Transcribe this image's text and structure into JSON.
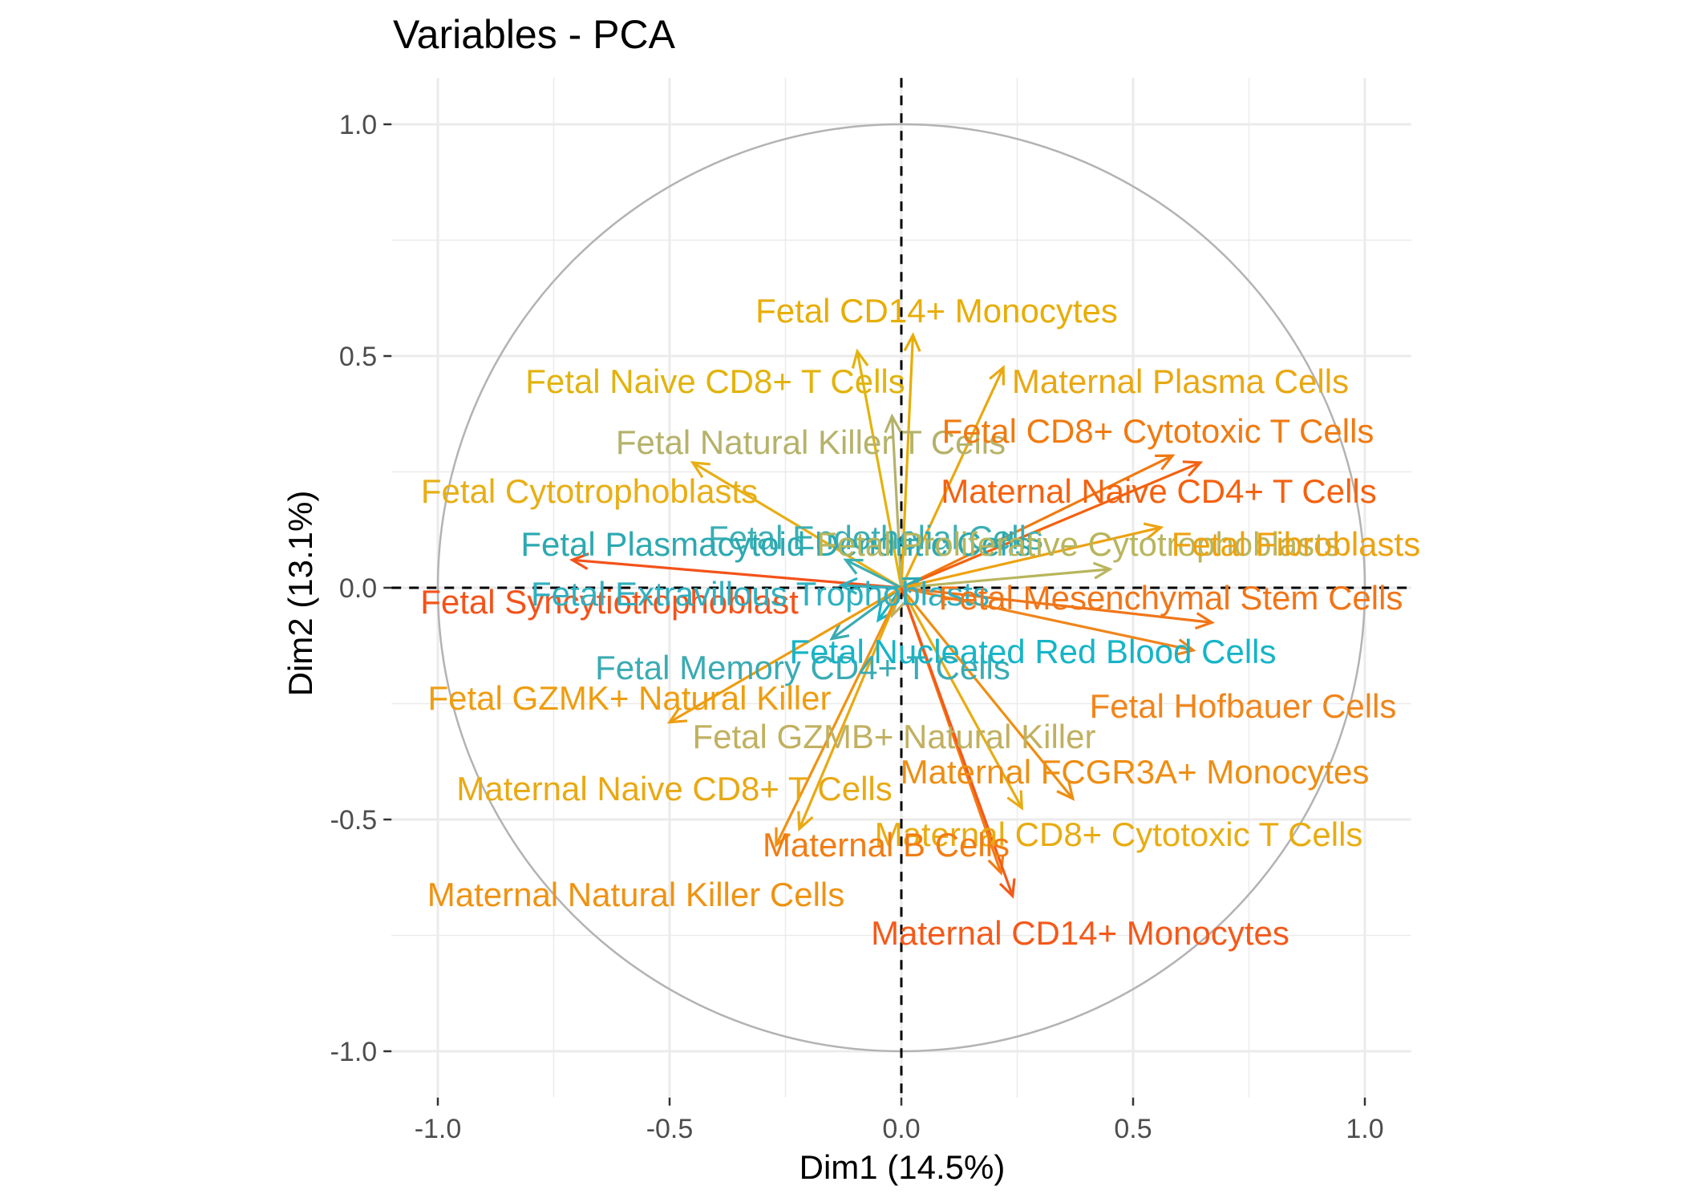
{
  "chart_data": {
    "type": "scatter",
    "subtype": "pca-variable-correlation-circle",
    "title": "Variables - PCA",
    "xlabel": "Dim1 (14.5%)",
    "ylabel": "Dim2 (13.1%)",
    "xlim": [
      -1.1,
      1.1
    ],
    "ylim": [
      -1.1,
      1.1
    ],
    "x_ticks": [
      -1.0,
      -0.5,
      0.0,
      0.5,
      1.0
    ],
    "x_tick_labels": [
      "-1.0",
      "-0.5",
      "0.0",
      "0.5",
      "1.0"
    ],
    "y_ticks": [
      -1.0,
      -0.5,
      0.0,
      0.5,
      1.0
    ],
    "y_tick_labels": [
      "-1.0",
      "-0.5",
      "0.0",
      "0.5",
      "1.0"
    ],
    "grid": true,
    "unit_circle": true,
    "reference_lines": [
      "x=0 dashed",
      "y=0 dashed"
    ],
    "colors": {
      "circle": "#b3b3b3",
      "grid": "#ebebeb",
      "ref_line": "#000000"
    },
    "variables": [
      {
        "label": "Fetal CD14+ Monocytes",
        "x": 0.025,
        "y": 0.545,
        "color": "#E8AD05"
      },
      {
        "label": "Fetal Naive CD8+ T Cells",
        "x": -0.095,
        "y": 0.51,
        "color": "#E2B30C"
      },
      {
        "label": "Maternal Plasma Cells",
        "x": 0.22,
        "y": 0.475,
        "color": "#E9A812"
      },
      {
        "label": "Fetal Natural Killer T Cells",
        "x": -0.02,
        "y": 0.37,
        "color": "#B5B26A"
      },
      {
        "label": "Fetal CD8+ Cytotoxic T Cells",
        "x": 0.585,
        "y": 0.285,
        "color": "#F07A10"
      },
      {
        "label": "Maternal Naive CD4+ T Cells",
        "x": 0.645,
        "y": 0.27,
        "color": "#F4610F"
      },
      {
        "label": "Fetal Cytotrophoblasts",
        "x": -0.45,
        "y": 0.27,
        "color": "#E8AE15"
      },
      {
        "label": "Fetal Endothelial Cells",
        "x": -0.12,
        "y": 0.06,
        "color": "#3AAFB3"
      },
      {
        "label": "Fetal Plasmacytoid Dendritic Cells",
        "x": 0.04,
        "y": 0.02,
        "color": "#2CA9B1"
      },
      {
        "label": "Fetal Proliferative Cytotrophoblasts",
        "x": 0.45,
        "y": 0.04,
        "color": "#B8B55D"
      },
      {
        "label": "Fetal Fibroblasts",
        "x": 0.56,
        "y": 0.13,
        "color": "#EDA20F"
      },
      {
        "label": "Fetal Syncytiotrophoblast",
        "x": -0.71,
        "y": 0.06,
        "color": "#F4521A"
      },
      {
        "label": "Fetal Extravillous Trophoblasts",
        "x": -0.13,
        "y": 0.005,
        "color": "#2FB0C0"
      },
      {
        "label": "Fetal Mesenchymal Stem Cells",
        "x": 0.67,
        "y": -0.075,
        "color": "#F17517"
      },
      {
        "label": "Fetal Memory CD4+ T Cells",
        "x": -0.15,
        "y": -0.11,
        "color": "#3BABB3"
      },
      {
        "label": "Fetal Nucleated Red Blood Cells",
        "x": -0.05,
        "y": -0.07,
        "color": "#16B4C7"
      },
      {
        "label": "Fetal Hofbauer Cells",
        "x": 0.63,
        "y": -0.135,
        "color": "#F0851B"
      },
      {
        "label": "Fetal GZMK+ Natural Killer",
        "x": -0.5,
        "y": -0.29,
        "color": "#EE9D10"
      },
      {
        "label": "Fetal GZMB+ Natural Killer",
        "x": -0.02,
        "y": -0.06,
        "color": "#C1B060"
      },
      {
        "label": "Maternal FCGR3A+ Monocytes",
        "x": 0.37,
        "y": -0.455,
        "color": "#EE8E12"
      },
      {
        "label": "Maternal Naive CD8+ T Cells",
        "x": -0.22,
        "y": -0.52,
        "color": "#E8A913"
      },
      {
        "label": "Maternal CD8+ Cytotoxic T Cells",
        "x": 0.26,
        "y": -0.475,
        "color": "#E8AC12"
      },
      {
        "label": "Maternal B Cells",
        "x": 0.215,
        "y": -0.615,
        "color": "#F27C13"
      },
      {
        "label": "Maternal Natural Killer Cells",
        "x": -0.27,
        "y": -0.555,
        "color": "#EF9212"
      },
      {
        "label": "Maternal CD14+ Monocytes",
        "x": 0.24,
        "y": -0.665,
        "color": "#F4591A"
      }
    ]
  }
}
